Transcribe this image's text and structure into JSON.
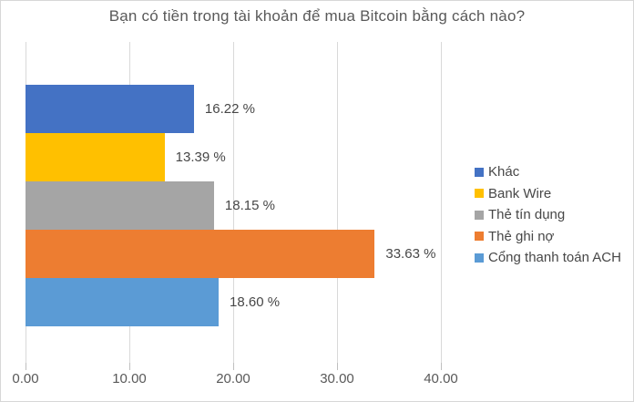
{
  "chart_data": {
    "type": "bar",
    "orientation": "horizontal",
    "title": "Bạn có tiền trong tài khoản để mua Bitcoin bằng cách nào?",
    "series": [
      {
        "name": "Khác",
        "value": 16.22,
        "label": "16.22 %",
        "color": "#4472C4"
      },
      {
        "name": "Bank Wire",
        "value": 13.39,
        "label": "13.39 %",
        "color": "#FFC000"
      },
      {
        "name": "Thẻ tín dụng",
        "value": 18.15,
        "label": "18.15 %",
        "color": "#A5A5A5"
      },
      {
        "name": "Thẻ ghi nợ",
        "value": 33.63,
        "label": "33.63 %",
        "color": "#ED7D31"
      },
      {
        "name": "Cổng thanh toán ACH",
        "value": 18.6,
        "label": "18.60 %",
        "color": "#5B9BD5"
      }
    ],
    "x_axis": {
      "min": 0,
      "max": 40,
      "tick_interval": 10,
      "tick_labels": [
        "0.00",
        "10.00",
        "20.00",
        "30.00",
        "40.00"
      ]
    },
    "legend_position": "right",
    "grid": true,
    "ylabel": "",
    "xlabel": ""
  },
  "colors": {
    "gridline": "#D9D9D9",
    "axis_text": "#595959",
    "label_text": "#474747",
    "background": "#FFFFFF"
  }
}
